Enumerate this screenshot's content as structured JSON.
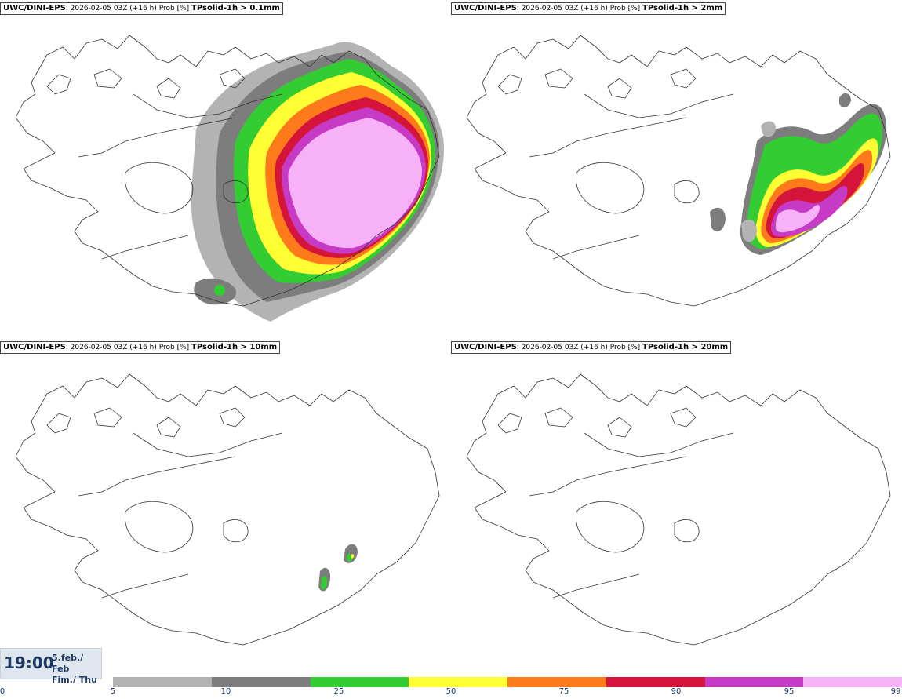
{
  "panels": [
    {
      "model": "UWC/DINI-EPS",
      "run_info": ": 2026-02-05 03Z (+16 h) Prob [%] ",
      "param": "TPsolid-1h > 0.1mm"
    },
    {
      "model": "UWC/DINI-EPS",
      "run_info": ": 2026-02-05 03Z (+16 h) Prob [%] ",
      "param": "TPsolid-1h > 2mm"
    },
    {
      "model": "UWC/DINI-EPS",
      "run_info": ": 2026-02-05 03Z (+16 h) Prob [%] ",
      "param": "TPsolid-1h > 10mm"
    },
    {
      "model": "UWC/DINI-EPS",
      "run_info": ": 2026-02-05 03Z (+16 h) Prob [%] ",
      "param": "TPsolid-1h > 20mm"
    }
  ],
  "valid_time": {
    "time": "19:00",
    "date_line1": "5.feb./ Feb",
    "date_line2": "Fim./ Thu"
  },
  "legend": {
    "colors": [
      "#b3b3b3",
      "#7d7d7d",
      "#33cc33",
      "#ffff33",
      "#ff7a1a",
      "#d4143a",
      "#c63ac6",
      "#f7b2f7"
    ],
    "ticks": [
      "0",
      "5",
      "10",
      "25",
      "50",
      "75",
      "90",
      "95",
      "99"
    ]
  }
}
